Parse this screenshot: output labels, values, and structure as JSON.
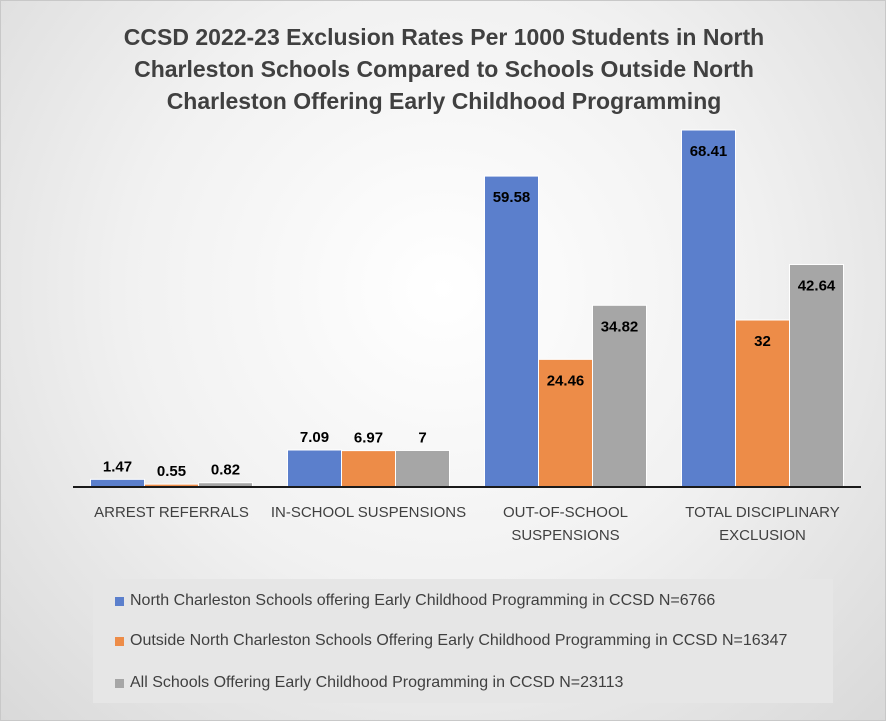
{
  "chart_data": {
    "type": "bar",
    "title": "CCSD 2022-23 Exclusion Rates Per 1000 Students in North Charleston Schools Compared to Schools Outside North Charleston Offering Early Childhood Programming",
    "title_lines": [
      "CCSD 2022-23 Exclusion Rates Per 1000 Students in North",
      "Charleston Schools Compared to Schools Outside North",
      "Charleston Offering Early Childhood Programming"
    ],
    "categories": [
      "ARREST REFERRALS",
      "IN-SCHOOL SUSPENSIONS",
      "OUT-OF-SCHOOL SUSPENSIONS",
      "TOTAL DISCIPLINARY EXCLUSION"
    ],
    "category_lines": [
      [
        "ARREST REFERRALS"
      ],
      [
        "IN-SCHOOL SUSPENSIONS"
      ],
      [
        "OUT-OF-SCHOOL",
        "SUSPENSIONS"
      ],
      [
        "TOTAL DISCIPLINARY",
        "EXCLUSION"
      ]
    ],
    "series": [
      {
        "name": "North Charleston Schools offering Early Childhood Programming in CCSD N=6766",
        "color": "#5b7fcc",
        "values": [
          1.47,
          7.09,
          59.58,
          68.41
        ],
        "labels": [
          "1.47",
          "7.09",
          "59.58",
          "68.41"
        ]
      },
      {
        "name": "Outside North Charleston Schools Offering Early Childhood Programming in CCSD N=16347",
        "color": "#ed8c48",
        "values": [
          0.55,
          6.97,
          24.46,
          32
        ],
        "labels": [
          "0.55",
          "6.97",
          "24.46",
          "32"
        ]
      },
      {
        "name": "All Schools Offering Early Childhood Programming in CCSD N=23113",
        "color": "#a6a6a6",
        "values": [
          0.82,
          7,
          34.82,
          42.64
        ],
        "labels": [
          "0.82",
          "7",
          "34.82",
          "42.64"
        ]
      }
    ],
    "ylim": [
      0,
      68.41
    ],
    "legend_position": "bottom",
    "grid": false
  }
}
